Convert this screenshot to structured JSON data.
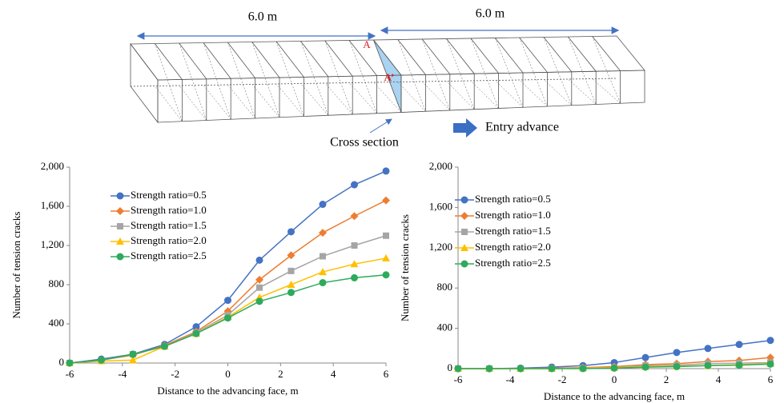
{
  "diagram": {
    "left_length": "6.0 m",
    "right_length": "6.0 m",
    "point_a": "A",
    "point_a_prime": "A’",
    "cross_section": "Cross section",
    "advance": "Entry advance"
  },
  "chart_data": [
    {
      "type": "line",
      "xlabel": "Distance to the advancing face, m",
      "ylabel": "Number  of tension cracks",
      "x": [
        -6,
        -4.8,
        -3.6,
        -2.4,
        -1.2,
        0,
        1.2,
        2.4,
        3.6,
        4.8,
        6
      ],
      "xlim": [
        -6,
        6
      ],
      "xticks": [
        -6,
        -4,
        -2,
        0,
        2,
        4,
        6
      ],
      "ylim": [
        0,
        2000
      ],
      "yticks": [
        0,
        400,
        800,
        {
          "value": 1200,
          "label": "1,200"
        },
        {
          "value": 1600,
          "label": "1,600"
        },
        {
          "value": 2000,
          "label": "2,000"
        }
      ],
      "series": [
        {
          "name": "Strength ratio=0.5",
          "color": "#4472c4",
          "marker": "circle",
          "values": [
            0,
            40,
            90,
            190,
            370,
            640,
            1050,
            1340,
            1620,
            1820,
            1960
          ]
        },
        {
          "name": "Strength ratio=1.0",
          "color": "#ed7d31",
          "marker": "diamond",
          "values": [
            0,
            30,
            80,
            180,
            320,
            530,
            850,
            1100,
            1330,
            1500,
            1660
          ]
        },
        {
          "name": "Strength ratio=1.5",
          "color": "#a5a5a5",
          "marker": "square",
          "values": [
            0,
            30,
            90,
            170,
            310,
            490,
            770,
            940,
            1090,
            1200,
            1300
          ]
        },
        {
          "name": "Strength ratio=2.0",
          "color": "#ffc000",
          "marker": "triangle",
          "values": [
            0,
            20,
            30,
            170,
            300,
            470,
            670,
            800,
            930,
            1010,
            1070
          ]
        },
        {
          "name": "Strength ratio=2.5",
          "color": "#2eaa5c",
          "marker": "circle",
          "values": [
            0,
            30,
            90,
            170,
            300,
            460,
            630,
            720,
            820,
            870,
            900
          ]
        }
      ]
    },
    {
      "type": "line",
      "xlabel": "Distance to the advancing face, m",
      "ylabel": "Number  of tension cracks",
      "x": [
        -6,
        -4.8,
        -3.6,
        -2.4,
        -1.2,
        0,
        1.2,
        2.4,
        3.6,
        4.8,
        6
      ],
      "xlim": [
        -6,
        6
      ],
      "xticks": [
        -6,
        -4,
        -2,
        0,
        2,
        4,
        6
      ],
      "ylim": [
        0,
        2000
      ],
      "yticks": [
        0,
        400,
        800,
        {
          "value": 1200,
          "label": "1,200"
        },
        {
          "value": 1600,
          "label": "1,600"
        },
        {
          "value": 2000,
          "label": "2,000"
        }
      ],
      "series": [
        {
          "name": "Strength ratio=0.5",
          "color": "#4472c4",
          "marker": "circle",
          "values": [
            0,
            0,
            5,
            15,
            30,
            60,
            110,
            160,
            200,
            240,
            280
          ]
        },
        {
          "name": "Strength ratio=1.0",
          "color": "#ed7d31",
          "marker": "diamond",
          "values": [
            0,
            0,
            0,
            5,
            10,
            20,
            40,
            50,
            70,
            80,
            110
          ]
        },
        {
          "name": "Strength ratio=1.5",
          "color": "#a5a5a5",
          "marker": "square",
          "values": [
            0,
            0,
            0,
            0,
            5,
            10,
            30,
            35,
            50,
            55,
            60
          ]
        },
        {
          "name": "Strength ratio=2.0",
          "color": "#ffc000",
          "marker": "triangle",
          "values": [
            0,
            0,
            0,
            0,
            5,
            10,
            20,
            25,
            30,
            40,
            50
          ]
        },
        {
          "name": "Strength ratio=2.5",
          "color": "#2eaa5c",
          "marker": "circle",
          "values": [
            0,
            0,
            0,
            0,
            0,
            5,
            15,
            20,
            30,
            35,
            45
          ]
        }
      ]
    }
  ]
}
